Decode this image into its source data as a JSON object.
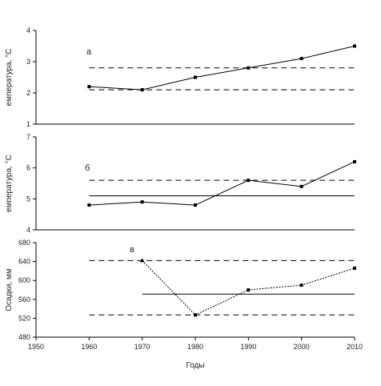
{
  "chart_data": [
    {
      "type": "line",
      "panel_label": "а",
      "ylabel": "емпература, °С",
      "yticks": [
        "1",
        "2",
        "3",
        "4"
      ],
      "ylim": [
        1,
        4
      ],
      "x": [
        1960,
        1970,
        1980,
        1990,
        2000,
        2010
      ],
      "values": [
        2.2,
        2.1,
        2.5,
        2.8,
        3.1,
        3.5
      ],
      "ref_dashed": [
        2.1,
        2.8
      ],
      "ref_solid": []
    },
    {
      "type": "line",
      "panel_label": "б",
      "ylabel": "емпература, °С",
      "yticks": [
        "4",
        "5",
        "6",
        "7"
      ],
      "ylim": [
        4,
        7
      ],
      "x": [
        1960,
        1970,
        1980,
        1990,
        2000,
        2010
      ],
      "values": [
        4.8,
        4.9,
        4.8,
        5.6,
        5.4,
        6.2
      ],
      "ref_dashed": [
        5.6
      ],
      "ref_solid": [
        5.1
      ]
    },
    {
      "type": "line",
      "panel_label": "в",
      "ylabel": "Осадки, мм",
      "yticks": [
        "480",
        "520",
        "560",
        "600",
        "640",
        "680"
      ],
      "ylim": [
        480,
        680
      ],
      "x": [
        1970,
        1980,
        1990,
        2000,
        2010
      ],
      "values": [
        642,
        527,
        580,
        590,
        626
      ],
      "ref_dashed": [
        527,
        642
      ],
      "ref_solid": [
        571
      ]
    }
  ],
  "x_axis": {
    "ticks": [
      "1950",
      "1960",
      "1970",
      "1980",
      "1990",
      "2000",
      "2010"
    ],
    "xlim": [
      1950,
      2010
    ],
    "label": "Годы"
  }
}
